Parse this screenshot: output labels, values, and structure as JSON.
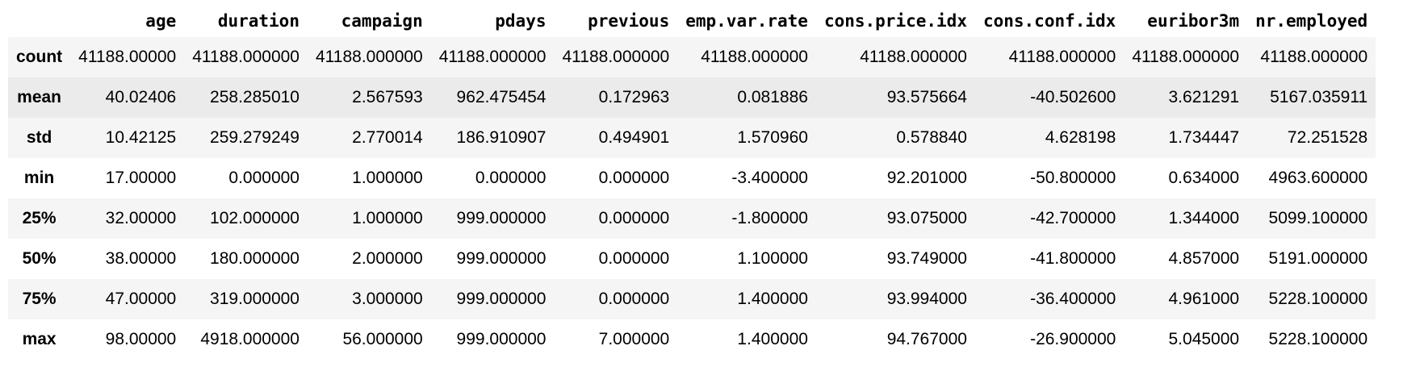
{
  "table": {
    "index_header": "",
    "columns": [
      "age",
      "duration",
      "campaign",
      "pdays",
      "previous",
      "emp.var.rate",
      "cons.price.idx",
      "cons.conf.idx",
      "euribor3m",
      "nr.employed"
    ],
    "rows": [
      {
        "label": "count",
        "values": [
          "41188.00000",
          "41188.000000",
          "41188.000000",
          "41188.000000",
          "41188.000000",
          "41188.000000",
          "41188.000000",
          "41188.000000",
          "41188.000000",
          "41188.000000"
        ]
      },
      {
        "label": "mean",
        "values": [
          "40.02406",
          "258.285010",
          "2.567593",
          "962.475454",
          "0.172963",
          "0.081886",
          "93.575664",
          "-40.502600",
          "3.621291",
          "5167.035911"
        ]
      },
      {
        "label": "std",
        "values": [
          "10.42125",
          "259.279249",
          "2.770014",
          "186.910907",
          "0.494901",
          "1.570960",
          "0.578840",
          "4.628198",
          "1.734447",
          "72.251528"
        ]
      },
      {
        "label": "min",
        "values": [
          "17.00000",
          "0.000000",
          "1.000000",
          "0.000000",
          "0.000000",
          "-3.400000",
          "92.201000",
          "-50.800000",
          "0.634000",
          "4963.600000"
        ]
      },
      {
        "label": "25%",
        "values": [
          "32.00000",
          "102.000000",
          "1.000000",
          "999.000000",
          "0.000000",
          "-1.800000",
          "93.075000",
          "-42.700000",
          "1.344000",
          "5099.100000"
        ]
      },
      {
        "label": "50%",
        "values": [
          "38.00000",
          "180.000000",
          "2.000000",
          "999.000000",
          "0.000000",
          "1.100000",
          "93.749000",
          "-41.800000",
          "4.857000",
          "5191.000000"
        ]
      },
      {
        "label": "75%",
        "values": [
          "47.00000",
          "319.000000",
          "3.000000",
          "999.000000",
          "0.000000",
          "1.400000",
          "93.994000",
          "-36.400000",
          "4.961000",
          "5228.100000"
        ]
      },
      {
        "label": "max",
        "values": [
          "98.00000",
          "4918.000000",
          "56.000000",
          "999.000000",
          "7.000000",
          "1.400000",
          "94.767000",
          "-26.900000",
          "5.045000",
          "5228.100000"
        ]
      }
    ]
  }
}
